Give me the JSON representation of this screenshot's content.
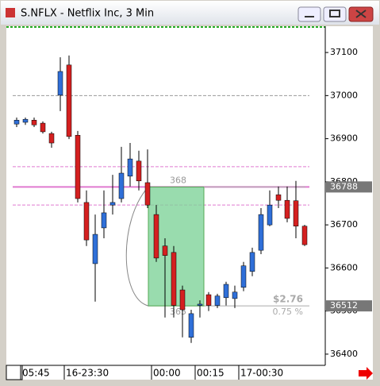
{
  "window": {
    "title": "S.NFLX - Netflix Inc, 3 Min"
  },
  "chart_data": {
    "type": "candlestick",
    "x": [
      "05:45",
      null,
      null,
      null,
      null,
      "16-23:30",
      null,
      null,
      null,
      null,
      null,
      null,
      null,
      null,
      null,
      "00:00",
      null,
      null,
      null,
      null,
      "00:15",
      null,
      null,
      null,
      null,
      "17-00:30",
      null,
      null,
      null,
      null,
      null,
      null,
      null,
      null
    ],
    "open": [
      36934,
      36938,
      36943,
      36936,
      36912,
      37001,
      37071,
      36908,
      36752,
      36610,
      36693,
      36746,
      36761,
      36813,
      36848,
      36798,
      36724,
      36651,
      36636,
      36549,
      36439,
      36513,
      36538,
      36513,
      36531,
      36529,
      36555,
      36592,
      36641,
      36700,
      36770,
      36757,
      36756,
      36697
    ],
    "high": [
      36949,
      36949,
      36949,
      36940,
      36916,
      37089,
      37093,
      36918,
      36780,
      36724,
      36780,
      36816,
      36881,
      36890,
      36872,
      36875,
      36746,
      36669,
      36651,
      36559,
      36503,
      36525,
      36544,
      36540,
      36568,
      36559,
      36614,
      36647,
      36739,
      36780,
      36789,
      36789,
      36802,
      36700
    ],
    "low": [
      36927,
      36932,
      36927,
      36912,
      36879,
      36964,
      36899,
      36752,
      36651,
      36522,
      36669,
      36724,
      36752,
      36789,
      36780,
      36739,
      36614,
      36485,
      36485,
      36439,
      36426,
      36485,
      36500,
      36507,
      36513,
      36507,
      36546,
      36581,
      36632,
      36697,
      36739,
      36706,
      36669,
      36651
    ],
    "close": [
      36943,
      36945,
      36932,
      36916,
      36890,
      37056,
      36905,
      36761,
      36665,
      36678,
      36728,
      36752,
      36820,
      36853,
      36802,
      36746,
      36623,
      36629,
      36513,
      36503,
      36494,
      36516,
      36513,
      36535,
      36562,
      36544,
      36605,
      36636,
      36724,
      36746,
      36757,
      36715,
      36697,
      36654
    ],
    "up_color": "#2f6fd8",
    "down_color": "#d42020",
    "ylim": [
      36374,
      37161
    ],
    "yticks": [
      36400,
      36500,
      36600,
      36700,
      36800,
      36900,
      37000,
      37100
    ],
    "levels": [
      {
        "value": 37000,
        "color": "#999999",
        "dashed": true
      },
      {
        "value": 36835,
        "color": "#e07ad0",
        "dashed": true
      },
      {
        "value": 36788,
        "color": "#e07ad0",
        "dashed": false
      },
      {
        "value": 36746,
        "color": "#e07ad0",
        "dashed": true
      },
      {
        "value": 36512,
        "color": "#aaaaaa",
        "dashed": false
      }
    ],
    "price_tags": [
      36788,
      36512
    ],
    "measure": {
      "from": 36788,
      "to": 36512,
      "start_label": "368",
      "end_label": "365",
      "change": "$2.76",
      "percent": "0.75 %"
    }
  }
}
